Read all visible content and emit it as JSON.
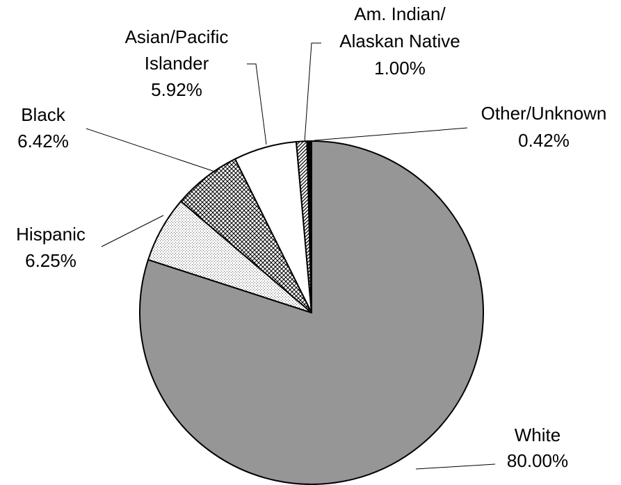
{
  "chart_data": {
    "type": "pie",
    "title": "",
    "slices": [
      {
        "label": "White",
        "value": 80.0,
        "display": "80.00%",
        "fill": "#969696",
        "pattern": "solid"
      },
      {
        "label": "Hispanic",
        "value": 6.25,
        "display": "6.25%",
        "fill": "#ffffff",
        "pattern": "dots"
      },
      {
        "label": "Black",
        "value": 6.42,
        "display": "6.42%",
        "fill": "#ffffff",
        "pattern": "crosshatch"
      },
      {
        "label": "Asian/Pacific Islander",
        "value": 5.92,
        "display": "5.92%",
        "fill": "#ffffff",
        "pattern": "solid"
      },
      {
        "label": "Am. Indian/ Alaskan Native",
        "value": 1.0,
        "display": "1.00%",
        "fill": "#ffffff",
        "pattern": "diagonal"
      },
      {
        "label": "Other/Unknown",
        "value": 0.42,
        "display": "0.42%",
        "fill": "#000000",
        "pattern": "solid"
      }
    ],
    "labels": {
      "white": [
        "White",
        "80.00%"
      ],
      "hispanic": [
        "Hispanic",
        "6.25%"
      ],
      "black": [
        "Black",
        "6.42%"
      ],
      "asian": [
        "Asian/Pacific",
        "Islander",
        "5.92%"
      ],
      "amindian": [
        "Am. Indian/",
        "Alaskan Native",
        "1.00%"
      ],
      "other": [
        "Other/Unknown",
        "0.42%"
      ]
    },
    "legend": "none",
    "grid": false
  }
}
